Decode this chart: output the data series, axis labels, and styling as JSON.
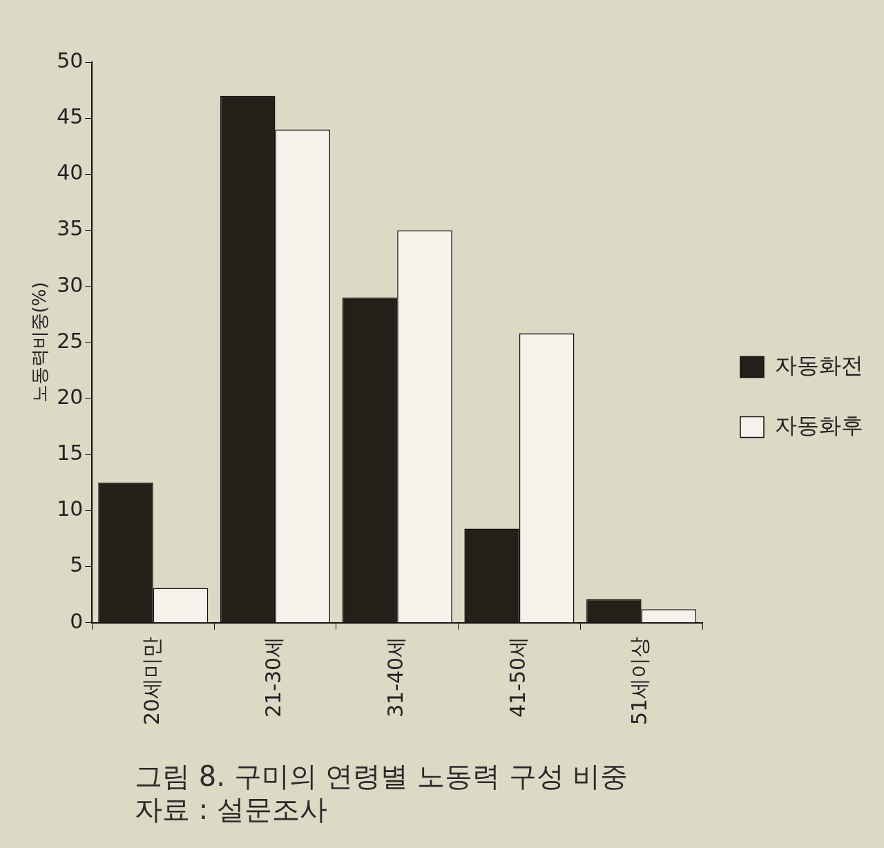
{
  "chart_data": {
    "type": "bar",
    "title": "그림 8. 구미의 연령별 노동력 구성 비중",
    "ylabel": "노동력비중(%)",
    "categories": [
      "20세미만",
      "21-30세",
      "31-40세",
      "41-50세",
      "51세이상"
    ],
    "series": [
      {
        "name": "자동화전",
        "color": "#23201a",
        "values": [
          12.5,
          47,
          29,
          8.4,
          2.1
        ]
      },
      {
        "name": "자동화후",
        "color": "#f4f2ea",
        "values": [
          3.1,
          44,
          35,
          25.8,
          1.2
        ]
      }
    ],
    "ylim": [
      0,
      50
    ],
    "yticks": [
      0,
      5,
      10,
      15,
      20,
      25,
      30,
      35,
      40,
      45,
      50
    ],
    "grid": false,
    "legend": "right",
    "annotations": [
      "자료 : 설문조사"
    ]
  }
}
